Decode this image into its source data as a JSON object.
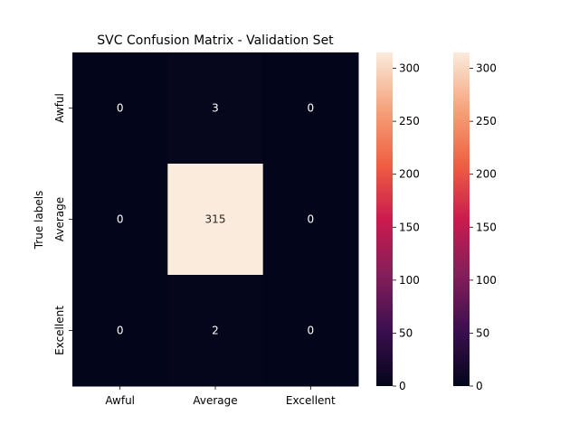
{
  "chart_data": {
    "type": "heatmap",
    "title": "SVC Confusion Matrix - Validation Set",
    "xlabel": "",
    "ylabel": "True labels",
    "x_categories": [
      "Awful",
      "Average",
      "Excellent"
    ],
    "y_categories": [
      "Awful",
      "Average",
      "Excellent"
    ],
    "values": [
      [
        0,
        3,
        0
      ],
      [
        0,
        315,
        0
      ],
      [
        0,
        2,
        0
      ]
    ],
    "colorbars": [
      {
        "range": [
          0,
          315
        ],
        "ticks": [
          0,
          50,
          100,
          150,
          200,
          250,
          300
        ]
      },
      {
        "range": [
          0,
          315
        ],
        "ticks": [
          0,
          50,
          100,
          150,
          200,
          250,
          300
        ]
      }
    ],
    "colormap_stops": [
      "#03051a",
      "#3b0f4f",
      "#841e5a",
      "#cb1b4f",
      "#f06043",
      "#f6a47c",
      "#faebdd"
    ],
    "annotation_colors": {
      "on_dark": "#ffffff",
      "on_light": "#262626"
    }
  }
}
